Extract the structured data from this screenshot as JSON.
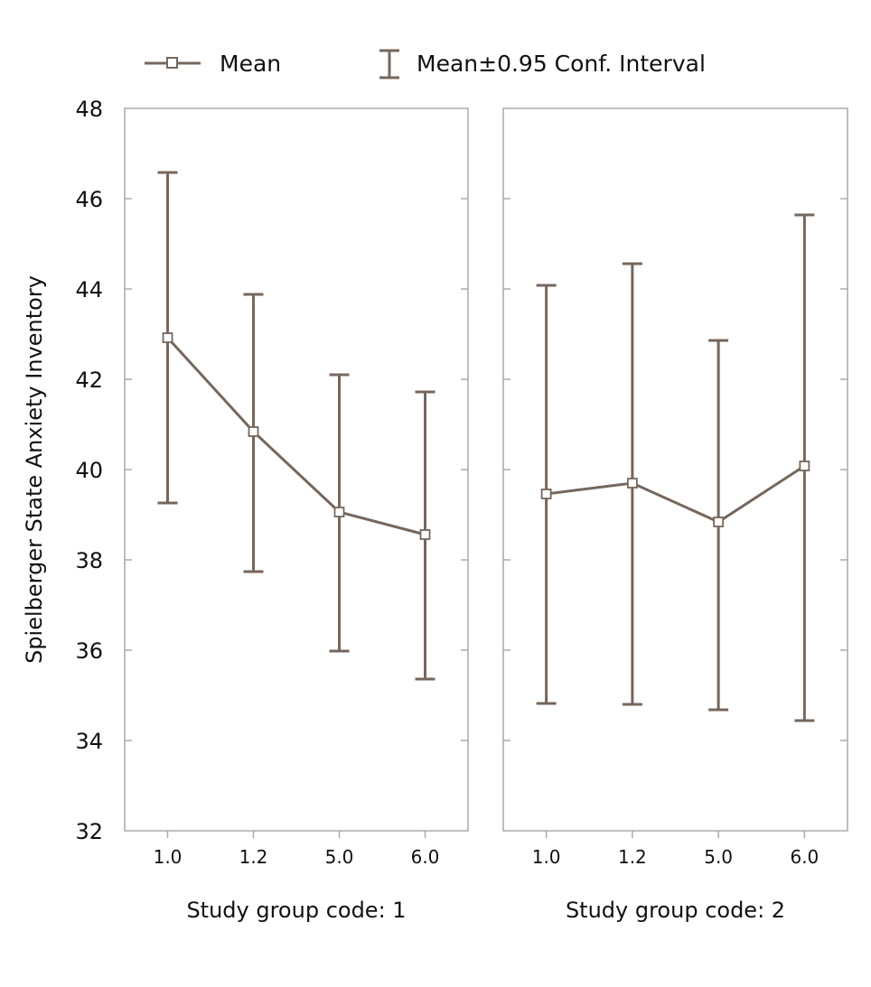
{
  "chart_data": {
    "type": "line",
    "ylabel": "Spielberger State Anxiety Inventory",
    "ylim": [
      32,
      48
    ],
    "yticks": [
      32,
      34,
      36,
      38,
      40,
      42,
      44,
      46,
      48
    ],
    "legend": {
      "placement": "top",
      "entries": [
        "Mean",
        "Mean±0.95 Conf. Interval"
      ]
    },
    "color": "#75675c",
    "panels": [
      {
        "xlabel": "Study group code: 1",
        "categories": [
          "1.0",
          "1.2",
          "5.0",
          "6.0"
        ],
        "mean": [
          42.92,
          40.84,
          39.06,
          38.56
        ],
        "ci_upper": [
          46.58,
          43.88,
          42.1,
          41.72
        ],
        "ci_lower": [
          39.26,
          37.74,
          35.98,
          35.36
        ]
      },
      {
        "xlabel": "Study group code: 2",
        "categories": [
          "1.0",
          "1.2",
          "5.0",
          "6.0"
        ],
        "mean": [
          39.46,
          39.7,
          38.84,
          40.08
        ],
        "ci_upper": [
          44.08,
          44.56,
          42.86,
          45.64
        ],
        "ci_lower": [
          34.82,
          34.8,
          34.68,
          34.44
        ]
      }
    ]
  }
}
